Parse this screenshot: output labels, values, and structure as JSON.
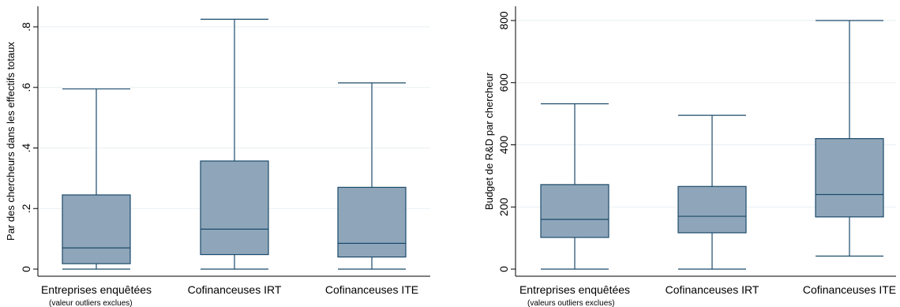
{
  "colors": {
    "box_fill": "#8fa6ba",
    "box_stroke": "#1b4a6b",
    "grid": "#eaeff3",
    "axis": "#000000"
  },
  "chart_data": [
    {
      "type": "box",
      "ylabel": "Par des chercheurs dans les effectifs totaux",
      "ylim": [
        0,
        0.85
      ],
      "yticks": [
        0,
        0.2,
        0.4,
        0.6,
        0.8
      ],
      "yticklabels": [
        "0",
        ".2",
        ".4",
        ".6",
        ".8"
      ],
      "grid": true,
      "categories": [
        {
          "label": "Entreprises enquêtées",
          "sublabel": "(valeur outliers exclues)"
        },
        {
          "label": "Cofinanceuses IRT",
          "sublabel": ""
        },
        {
          "label": "Cofinanceuses ITE",
          "sublabel": ""
        }
      ],
      "boxes": [
        {
          "min": 0.0,
          "q1": 0.018,
          "median": 0.07,
          "q3": 0.245,
          "max": 0.595
        },
        {
          "min": 0.0,
          "q1": 0.048,
          "median": 0.132,
          "q3": 0.357,
          "max": 0.825
        },
        {
          "min": 0.0,
          "q1": 0.04,
          "median": 0.085,
          "q3": 0.27,
          "max": 0.615
        }
      ]
    },
    {
      "type": "box",
      "ylabel": "Budget de R&D par chercheur",
      "ylim": [
        0,
        810
      ],
      "yticks": [
        0,
        200,
        400,
        600,
        800
      ],
      "yticklabels": [
        "0",
        "200",
        "400",
        "600",
        "800"
      ],
      "grid": true,
      "categories": [
        {
          "label": "Entreprises enquêtées",
          "sublabel": "(valeurs outliers exclues)"
        },
        {
          "label": "Cofinanceuses IRT",
          "sublabel": ""
        },
        {
          "label": "Cofinanceuses ITE",
          "sublabel": ""
        }
      ],
      "boxes": [
        {
          "min": 0,
          "q1": 102,
          "median": 160,
          "q3": 272,
          "max": 532
        },
        {
          "min": 0,
          "q1": 117,
          "median": 170,
          "q3": 266,
          "max": 495
        },
        {
          "min": 42,
          "q1": 168,
          "median": 240,
          "q3": 420,
          "max": 800
        }
      ]
    }
  ]
}
